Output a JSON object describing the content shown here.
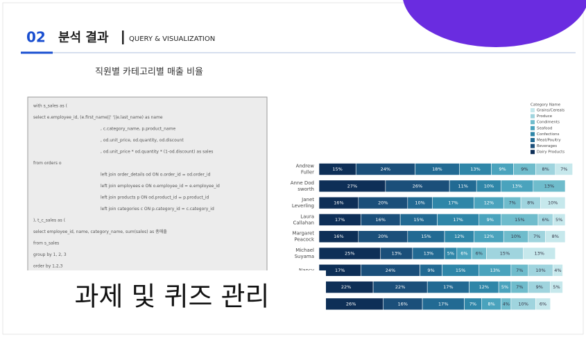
{
  "header": {
    "number": "02",
    "title": "분석 결과",
    "subtitle": "QUERY & VISUALIZATION"
  },
  "chart_title": "직원별 카테고리별 매출 비율",
  "code": [
    "with s_sales as (",
    "select e.employee_id, (e.first_name||' '||e.last_name) as name",
    ", c.category_name, p.product_name",
    ", od.unit_price, od.quantity, od.discount",
    ", od.unit_price * od.quantity * (1-od.discount) as sales",
    "from orders o",
    "left join order_details od ON o.order_id = od.order_id",
    "left join employees e ON o.employee_id = e.employee_id",
    "left join products p ON od.product_id = p.product_id",
    "left join categories c ON p.category_id = c.category_id",
    "), t_c_sales as (",
    "select employee_id, name, category_name, sum(sales) as 총매출",
    "from s_sales",
    "group by 1, 2, 3",
    "order by 1,2,3"
  ],
  "overlay": "과제 및 퀴즈 관리",
  "chart_data": {
    "type": "bar",
    "orientation": "horizontal",
    "stacked": true,
    "legend_title": "Category Name",
    "xlim": [
      0,
      100
    ],
    "categories": [
      [
        "Andrew",
        "Fuller"
      ],
      [
        "Anne Dod",
        "sworth"
      ],
      [
        "Janet",
        "Leverling"
      ],
      [
        "Laura",
        "Callahan"
      ],
      [
        "Margaret",
        "Peacock"
      ],
      [
        "Michael",
        "Suyama"
      ],
      [
        "Nancy"
      ],
      null,
      null
    ],
    "series": [
      {
        "name": "Dairy Products",
        "color": "#0e2f57",
        "values": [
          15,
          27,
          16,
          17,
          16,
          25,
          17,
          22,
          26
        ],
        "value_labels": [
          "15%",
          "27%",
          "16%",
          "17%",
          "16%",
          "25%",
          "17%",
          "22%",
          "26%"
        ]
      },
      {
        "name": "Beverages",
        "color": "#1b4f7a",
        "values": [
          24,
          26,
          20,
          16,
          20,
          13,
          24,
          22,
          16
        ],
        "value_labels": [
          "24%",
          "26%",
          "20%",
          "16%",
          "20%",
          "13%",
          "24%",
          "22%",
          "16%"
        ]
      },
      {
        "name": "Meat/Poultry",
        "color": "#226a93",
        "values": [
          18,
          11,
          10,
          15,
          15,
          13,
          9,
          17,
          17
        ],
        "value_labels": [
          "18%",
          "11%",
          "10%",
          "15%",
          "15%",
          "13%",
          "9%",
          "17%",
          "17%"
        ]
      },
      {
        "name": "Confections",
        "color": "#2f86a8",
        "values": [
          13,
          10,
          17,
          17,
          12,
          5,
          15,
          12,
          7
        ],
        "value_labels": [
          "13%",
          "10%",
          "17%",
          "17%",
          "12%",
          "5%",
          "15%",
          "12%",
          "7%"
        ]
      },
      {
        "name": "Seafood",
        "color": "#4aa3bd",
        "values": [
          9,
          13,
          12,
          9,
          12,
          6,
          13,
          5,
          8
        ],
        "value_labels": [
          "9%",
          "13%",
          "12%",
          "9%",
          "12%",
          "6%",
          "13%",
          "5%",
          "8%"
        ]
      },
      {
        "name": "Condiments",
        "color": "#6fbccc",
        "values": [
          9,
          13,
          7,
          15,
          10,
          6,
          7,
          7,
          4
        ],
        "value_labels": [
          "9%",
          "13%",
          "7%",
          "15%",
          "10%",
          "6%",
          "7%",
          "7%",
          "4%"
        ]
      },
      {
        "name": "Produce",
        "color": "#9fd4de",
        "values": [
          8,
          null,
          8,
          6,
          7,
          15,
          10,
          9,
          10
        ],
        "value_labels": [
          "8%",
          null,
          "8%",
          "6%",
          "7%",
          "15%",
          "10%",
          "9%",
          "10%"
        ]
      },
      {
        "name": "Grains/Cereals",
        "color": "#c6e8ec",
        "values": [
          7,
          null,
          10,
          5,
          8,
          13,
          4,
          5,
          6
        ],
        "value_labels": [
          "7%",
          null,
          "10%",
          "5%",
          "8%",
          "13%",
          "4%",
          "5%",
          "6%"
        ]
      }
    ]
  }
}
